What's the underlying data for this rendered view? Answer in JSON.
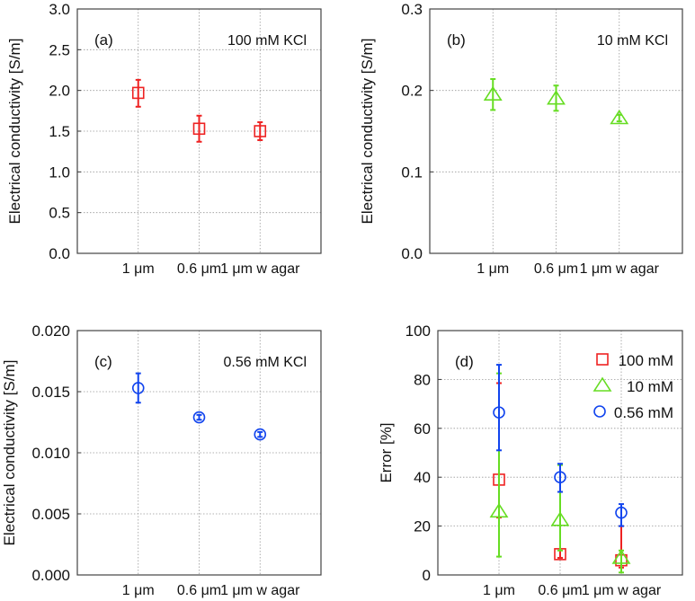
{
  "chart_data": [
    {
      "type": "scatter",
      "panel_label": "(a)",
      "annotation": "100 mM KCl",
      "ylabel": "Electrical conductivity [S/m]",
      "ylim": [
        0,
        3.0
      ],
      "yticks": [
        "0.0",
        "0.5",
        "1.0",
        "1.5",
        "2.0",
        "2.5",
        "3.0"
      ],
      "ytick_values": [
        0,
        0.5,
        1,
        1.5,
        2,
        2.5,
        3
      ],
      "categories": [
        "1 μm",
        "0.6 μm",
        "1 μm w agar"
      ],
      "grid": true,
      "series": [
        {
          "name": "100 mM",
          "marker": "square",
          "color": "#ee2222",
          "values": [
            1.97,
            1.53,
            1.5
          ],
          "err_low": [
            1.8,
            1.37,
            1.39
          ],
          "err_high": [
            2.13,
            1.69,
            1.61
          ]
        }
      ]
    },
    {
      "type": "scatter",
      "panel_label": "(b)",
      "annotation": "10 mM KCl",
      "ylabel": "Electrical conductivity [S/m]",
      "ylim": [
        0,
        0.3
      ],
      "yticks": [
        "0.0",
        "0.1",
        "0.2",
        "0.3"
      ],
      "ytick_values": [
        0,
        0.1,
        0.2,
        0.3
      ],
      "categories": [
        "1 μm",
        "0.6 μm",
        "1 μm w agar"
      ],
      "grid": true,
      "series": [
        {
          "name": "10 mM",
          "marker": "triangle",
          "color": "#66dd22",
          "values": [
            0.195,
            0.19,
            0.166
          ],
          "err_low": [
            0.176,
            0.175,
            0.162
          ],
          "err_high": [
            0.214,
            0.206,
            0.17
          ]
        }
      ]
    },
    {
      "type": "scatter",
      "panel_label": "(c)",
      "annotation": "0.56 mM KCl",
      "ylabel": "Electrical conductivity [S/m]",
      "ylim": [
        0,
        0.02
      ],
      "yticks": [
        "0.000",
        "0.005",
        "0.010",
        "0.015",
        "0.020"
      ],
      "ytick_values": [
        0,
        0.005,
        0.01,
        0.015,
        0.02
      ],
      "categories": [
        "1 μm",
        "0.6 μm",
        "1 μm w agar"
      ],
      "grid": true,
      "series": [
        {
          "name": "0.56 mM",
          "marker": "circle",
          "color": "#1144ee",
          "values": [
            0.0153,
            0.0129,
            0.0115
          ],
          "err_low": [
            0.0141,
            0.0127,
            0.0113
          ],
          "err_high": [
            0.0165,
            0.0131,
            0.0117
          ]
        }
      ]
    },
    {
      "type": "scatter",
      "panel_label": "(d)",
      "annotation": "",
      "ylabel": "Error [%]",
      "ylim": [
        0,
        100
      ],
      "yticks": [
        "0",
        "20",
        "40",
        "60",
        "80",
        "100"
      ],
      "ytick_values": [
        0,
        20,
        40,
        60,
        80,
        100
      ],
      "categories": [
        "1 μm",
        "0.6 μm",
        "1 μm w agar"
      ],
      "grid": true,
      "legend_position": "top-right",
      "series": [
        {
          "name": "100 mM",
          "marker": "square",
          "color": "#ee2222",
          "values": [
            39,
            8.5,
            6
          ],
          "err_low": [
            23.5,
            7,
            3
          ],
          "err_high": [
            78.5,
            34,
            20
          ]
        },
        {
          "name": "10 mM",
          "marker": "triangle",
          "color": "#66dd22",
          "values": [
            26,
            22.5,
            7
          ],
          "err_low": [
            7.5,
            10,
            1
          ],
          "err_high": [
            82.5,
            45,
            10
          ]
        },
        {
          "name": "0.56 mM",
          "marker": "circle",
          "color": "#1144ee",
          "values": [
            66.5,
            40,
            25.5
          ],
          "err_low": [
            51,
            34,
            20
          ],
          "err_high": [
            86,
            45.5,
            29
          ]
        }
      ]
    }
  ]
}
